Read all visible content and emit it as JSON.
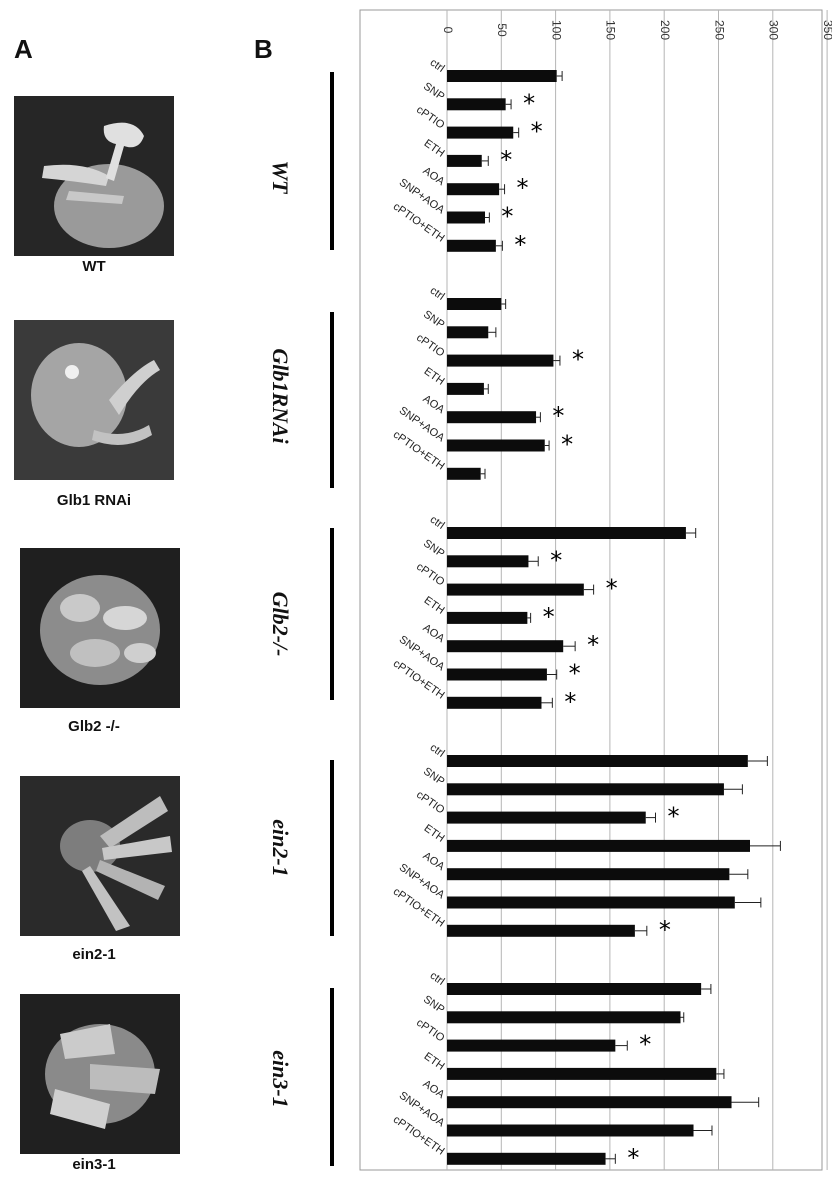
{
  "figure": {
    "panel_a_label": "A",
    "panel_b_label": "B",
    "photos": [
      {
        "caption": "WT"
      },
      {
        "caption": "Glb1 RNAi"
      },
      {
        "caption": "Glb2 -/-"
      },
      {
        "caption": "ein2-1"
      },
      {
        "caption": "ein3-1"
      }
    ]
  },
  "chart_data": {
    "type": "bar",
    "orientation": "horizontal",
    "value_ticks": [
      "0",
      "50",
      "100",
      "150",
      "200",
      "250",
      "300",
      "350"
    ],
    "xlim": [
      0,
      350
    ],
    "grid": true,
    "significance_marker": "*",
    "groups": [
      {
        "name": "WT",
        "categories": [
          "ctrl",
          "SNP",
          "cPTIO",
          "ETH",
          "AOA",
          "SNP+AOA",
          "cPTIO+ETH"
        ],
        "values": [
          101,
          54,
          61,
          32,
          48,
          35,
          45
        ],
        "errors": [
          5,
          5,
          5,
          6,
          5,
          4,
          6
        ],
        "significant": [
          false,
          true,
          true,
          true,
          true,
          true,
          true
        ]
      },
      {
        "name": "Glb1RNAi",
        "categories": [
          "ctrl",
          "SNP",
          "cPTIO",
          "ETH",
          "AOA",
          "SNP+AOA",
          "cPTIO+ETH"
        ],
        "values": [
          50,
          38,
          98,
          34,
          82,
          90,
          31
        ],
        "errors": [
          4,
          7,
          6,
          4,
          4,
          4,
          4
        ],
        "significant": [
          false,
          false,
          true,
          false,
          true,
          true,
          false
        ]
      },
      {
        "name": "Glb2-/-",
        "categories": [
          "ctrl",
          "SNP",
          "cPTIO",
          "ETH",
          "AOA",
          "SNP+AOA",
          "cPTIO+ETH"
        ],
        "values": [
          220,
          75,
          126,
          74,
          107,
          92,
          87
        ],
        "errors": [
          9,
          9,
          9,
          3,
          11,
          9,
          10
        ],
        "significant": [
          false,
          true,
          true,
          true,
          true,
          true,
          true
        ]
      },
      {
        "name": "ein2-1",
        "categories": [
          "ctrl",
          "SNP",
          "cPTIO",
          "ETH",
          "AOA",
          "SNP+AOA",
          "cPTIO+ETH"
        ],
        "values": [
          277,
          255,
          183,
          279,
          260,
          265,
          173
        ],
        "errors": [
          18,
          17,
          9,
          28,
          17,
          24,
          11
        ],
        "significant": [
          false,
          false,
          true,
          false,
          false,
          false,
          true
        ]
      },
      {
        "name": "ein3-1",
        "categories": [
          "ctrl",
          "SNP",
          "cPTIO",
          "ETH",
          "AOA",
          "SNP+AOA",
          "cPTIO+ETH"
        ],
        "values": [
          234,
          215,
          155,
          248,
          262,
          227,
          146
        ],
        "errors": [
          9,
          3,
          11,
          7,
          25,
          17,
          9
        ],
        "significant": [
          false,
          false,
          true,
          false,
          false,
          false,
          true
        ]
      }
    ]
  }
}
